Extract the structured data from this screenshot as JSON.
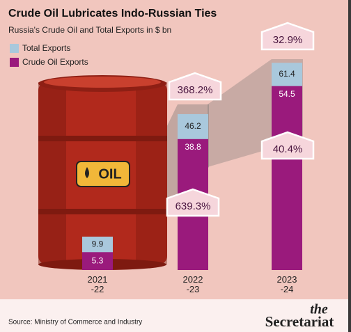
{
  "chart_data": {
    "type": "bar",
    "title": "Crude Oil Lubricates Indo-Russian Ties",
    "subtitle": "Russia's Crude Oil and Total Exports in $ bn",
    "categories": [
      "2021\n-22",
      "2022\n-23",
      "2023\n-24"
    ],
    "series": [
      {
        "name": "Total Exports",
        "color": "#a9c8dc",
        "values": [
          9.9,
          46.2,
          61.4
        ]
      },
      {
        "name": "Crude Oil Exports",
        "color": "#9a1a7c",
        "values": [
          5.3,
          38.8,
          54.5
        ]
      }
    ],
    "ylim": [
      0,
      80
    ],
    "annotations": [
      {
        "text": "368.2%"
      },
      {
        "text": "639.3%"
      },
      {
        "text": "32.9%"
      },
      {
        "text": "40.4%"
      }
    ],
    "barrel_label": "OIL",
    "source": "Source: Ministry of Commerce and Industry",
    "brand_top": "the",
    "brand": "Secretariat"
  }
}
